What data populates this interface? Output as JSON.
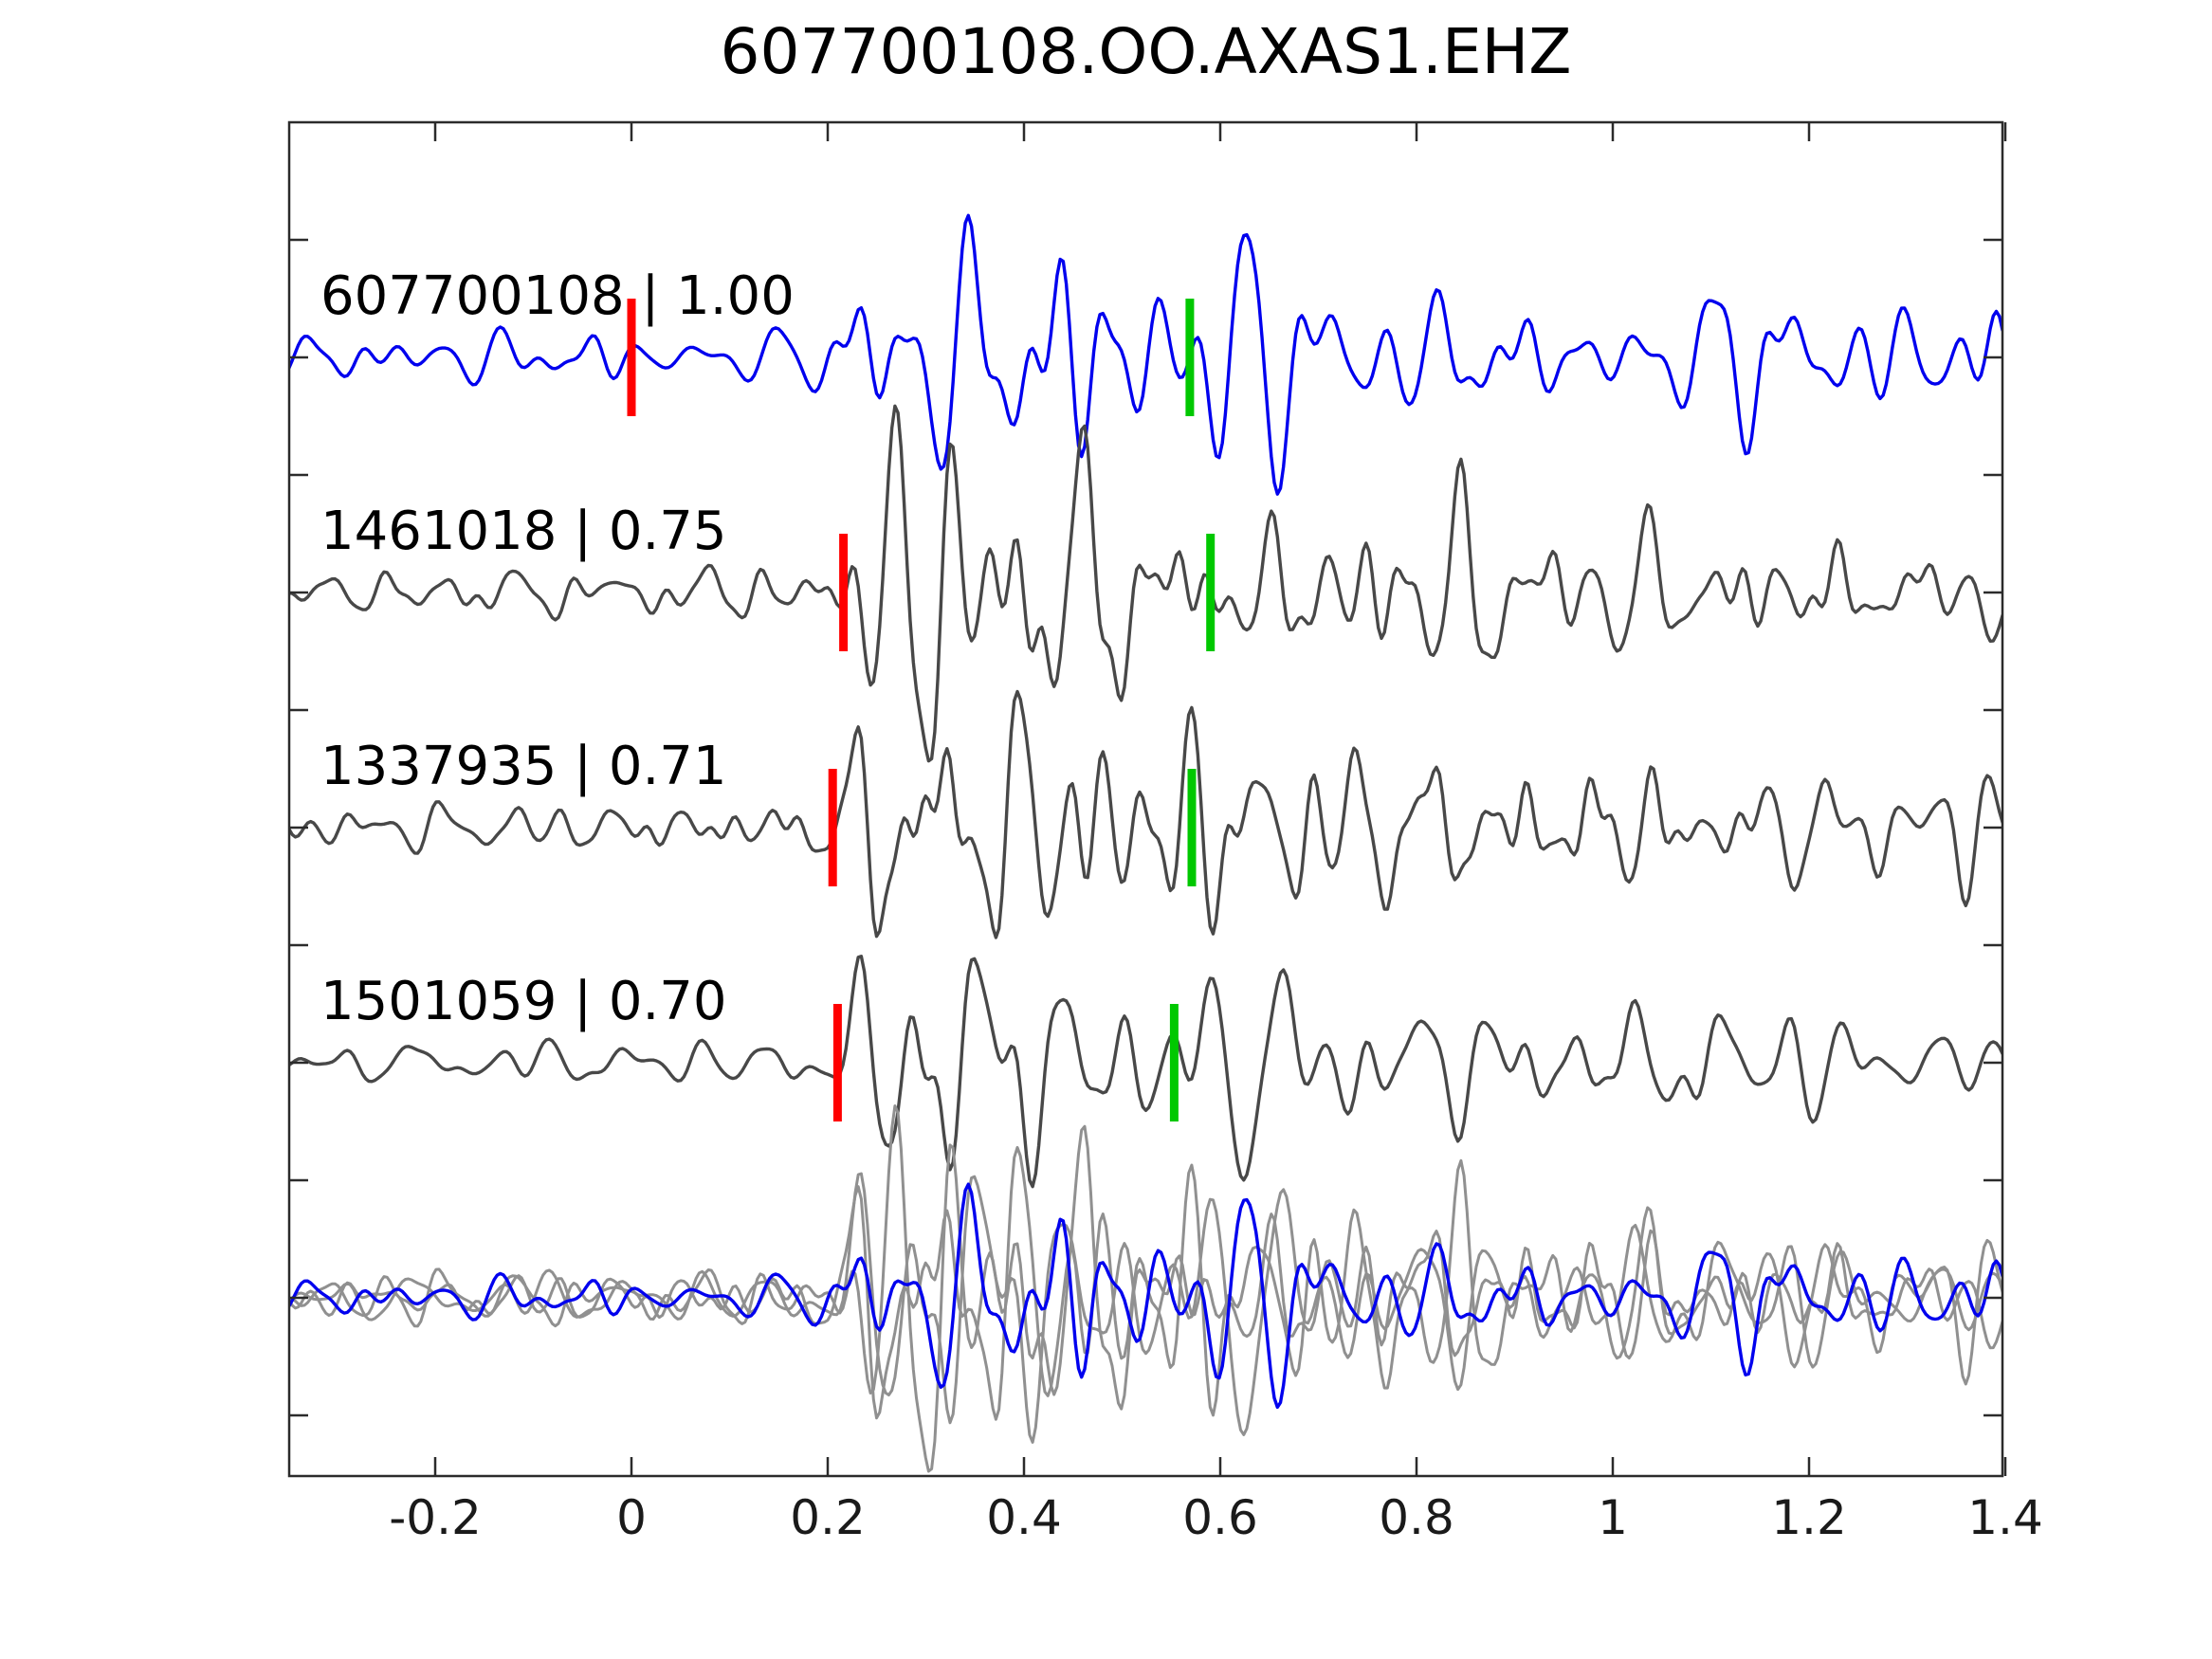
{
  "title": "607700108.OO.AXAS1.EHZ",
  "chart_data": {
    "type": "line",
    "title": "607700108.OO.AXAS1.EHZ",
    "description": "Template matching / matched-filter seismic waveform comparison: template trace on top, three detected event traces below (id | correlation), and an aligned overlay of all traces at the bottom",
    "x_range": [
      -0.349,
      1.4
    ],
    "x_ticks": [
      {
        "t": -0.2,
        "label": "-0.2"
      },
      {
        "t": 0.0,
        "label": "0"
      },
      {
        "t": 0.2,
        "label": "0.2"
      },
      {
        "t": 0.4,
        "label": "0.4"
      },
      {
        "t": 0.6,
        "label": "0.6"
      },
      {
        "t": 0.8,
        "label": "0.8"
      },
      {
        "t": 1.0,
        "label": "1"
      },
      {
        "t": 1.2,
        "label": "1.2"
      },
      {
        "t": 1.4,
        "label": "1.4"
      }
    ],
    "grid": false,
    "legend": "none",
    "traces": [
      {
        "id": "607700108",
        "correlation": 1.0,
        "label": "607700108 | 1.00",
        "color": "#0000ee",
        "red_pick_t": 0.0,
        "green_pick_t": 0.569
      },
      {
        "id": "1461018",
        "correlation": 0.75,
        "label": "1461018 | 0.75",
        "color": "#484848",
        "red_pick_t": 0.216,
        "green_pick_t": 0.59
      },
      {
        "id": "1337935",
        "correlation": 0.71,
        "label": "1337935 | 0.71",
        "color": "#484848",
        "red_pick_t": 0.205,
        "green_pick_t": 0.571
      },
      {
        "id": "1501059",
        "correlation": 0.7,
        "label": "1501059 | 0.70",
        "color": "#484848",
        "red_pick_t": 0.21,
        "green_pick_t": 0.553
      }
    ],
    "overlay_row": {
      "members": [
        "1461018",
        "1337935",
        "1501059"
      ],
      "template": "607700108",
      "gray_color": "#909090",
      "template_color": "#0000ee"
    },
    "marker_colors": {
      "pick_red": "#ff0000",
      "detection_green": "#00c800"
    },
    "frame_color": "#2b2b2b"
  }
}
